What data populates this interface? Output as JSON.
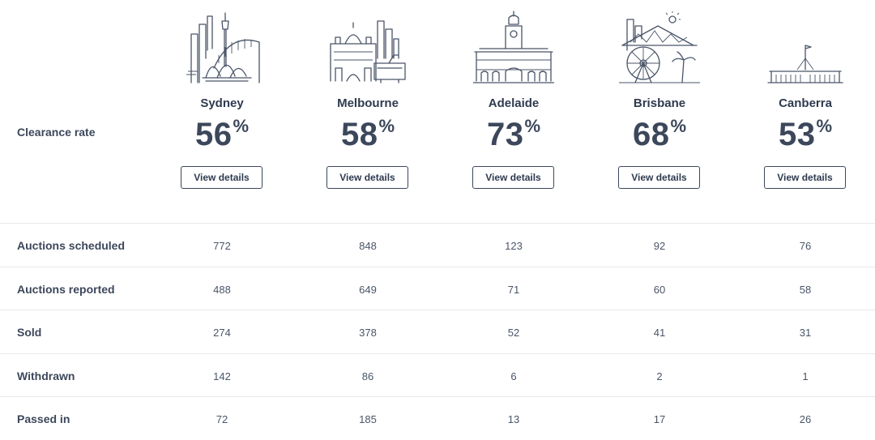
{
  "header": {
    "clearance_label": "Clearance rate",
    "pct_symbol": "%"
  },
  "cities": [
    {
      "name": "Sydney",
      "rate": "56",
      "button": "View details",
      "icon": "sydney-skyline-icon"
    },
    {
      "name": "Melbourne",
      "rate": "58",
      "button": "View details",
      "icon": "melbourne-skyline-icon"
    },
    {
      "name": "Adelaide",
      "rate": "73",
      "button": "View details",
      "icon": "adelaide-skyline-icon"
    },
    {
      "name": "Brisbane",
      "rate": "68",
      "button": "View details",
      "icon": "brisbane-skyline-icon"
    },
    {
      "name": "Canberra",
      "rate": "53",
      "button": "View details",
      "icon": "canberra-skyline-icon"
    }
  ],
  "rows": [
    {
      "label": "Auctions scheduled",
      "values": [
        "772",
        "848",
        "123",
        "92",
        "76"
      ]
    },
    {
      "label": "Auctions reported",
      "values": [
        "488",
        "649",
        "71",
        "60",
        "58"
      ]
    },
    {
      "label": "Sold",
      "values": [
        "274",
        "378",
        "52",
        "41",
        "31"
      ]
    },
    {
      "label": "Withdrawn",
      "values": [
        "142",
        "86",
        "6",
        "2",
        "1"
      ]
    },
    {
      "label": "Passed in",
      "values": [
        "72",
        "185",
        "13",
        "17",
        "26"
      ]
    }
  ]
}
